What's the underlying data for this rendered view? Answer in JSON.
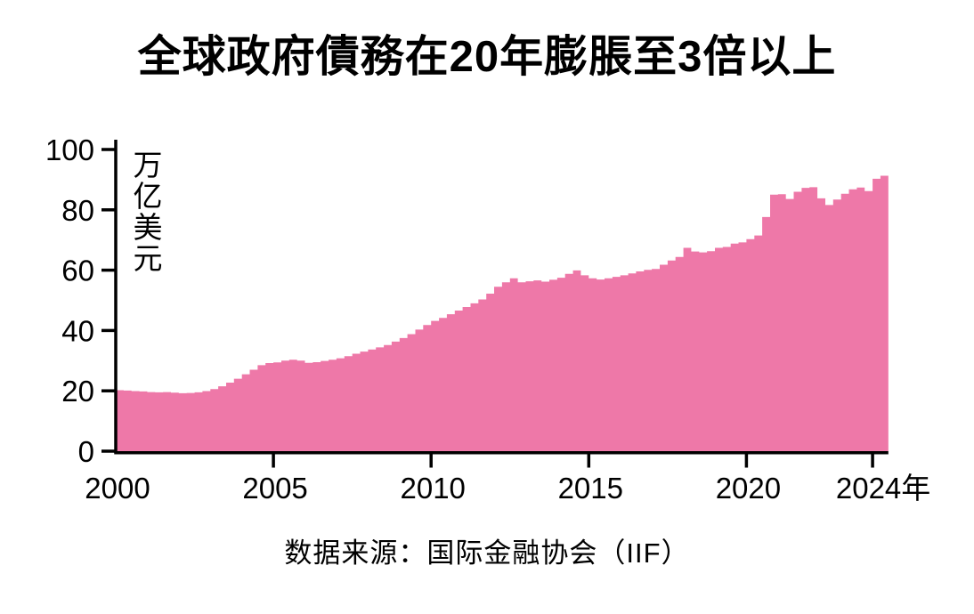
{
  "page": {
    "title": "全球政府債務在20年膨脹至3倍以上",
    "source_caption": "数据来源：国际金融协会（IIF）"
  },
  "chart_data": {
    "type": "area",
    "style": "step",
    "title": "全球政府債務在20年膨脹至3倍以上",
    "ylabel": "万亿美元",
    "ylabel_chars": [
      "万",
      "亿",
      "美",
      "元"
    ],
    "source": "数据来源：国际金融协会（IIF）",
    "x_start": 2000,
    "x_step": 0.25,
    "xlim": [
      2000,
      2024.5
    ],
    "ylim": [
      0,
      100
    ],
    "y_ticks": [
      0,
      20,
      40,
      60,
      80,
      100
    ],
    "x_ticks": [
      {
        "year": 2000,
        "label": "2000",
        "tick": false
      },
      {
        "year": 2005,
        "label": "2005",
        "tick": true
      },
      {
        "year": 2010,
        "label": "2010",
        "tick": true
      },
      {
        "year": 2015,
        "label": "2015",
        "tick": true
      },
      {
        "year": 2020,
        "label": "2020",
        "tick": true
      },
      {
        "year": 2024,
        "label": "2024年",
        "tick": true
      }
    ],
    "grid": false,
    "legend": "none",
    "values": [
      20.2,
      20.1,
      19.9,
      19.8,
      19.6,
      19.5,
      19.6,
      19.4,
      19.2,
      19.3,
      19.5,
      19.9,
      20.6,
      21.5,
      22.7,
      24.0,
      25.5,
      27.0,
      28.5,
      29.2,
      29.4,
      30.0,
      30.3,
      30.0,
      29.3,
      29.5,
      29.9,
      30.3,
      30.8,
      31.5,
      32.3,
      33.0,
      33.7,
      34.4,
      35.2,
      36.3,
      37.5,
      38.8,
      40.3,
      41.8,
      43.2,
      44.2,
      45.4,
      46.6,
      47.8,
      49.0,
      50.3,
      52.2,
      54.5,
      56.0,
      57.3,
      56.0,
      56.3,
      56.6,
      56.2,
      56.8,
      57.5,
      58.8,
      59.9,
      58.3,
      57.3,
      56.9,
      57.3,
      57.8,
      58.3,
      58.9,
      59.6,
      60.1,
      60.4,
      61.8,
      63.2,
      64.4,
      67.4,
      66.2,
      65.9,
      66.3,
      67.4,
      67.7,
      68.8,
      69.2,
      70.3,
      71.5,
      77.6,
      85.0,
      85.2,
      83.6,
      86.0,
      87.3,
      87.5,
      83.8,
      81.6,
      83.4,
      85.3,
      86.8,
      87.4,
      86.2,
      90.3,
      91.3
    ],
    "colors": {
      "area": "#ee78a8",
      "axis": "#000000",
      "text": "#000000",
      "background": "#ffffff"
    }
  }
}
